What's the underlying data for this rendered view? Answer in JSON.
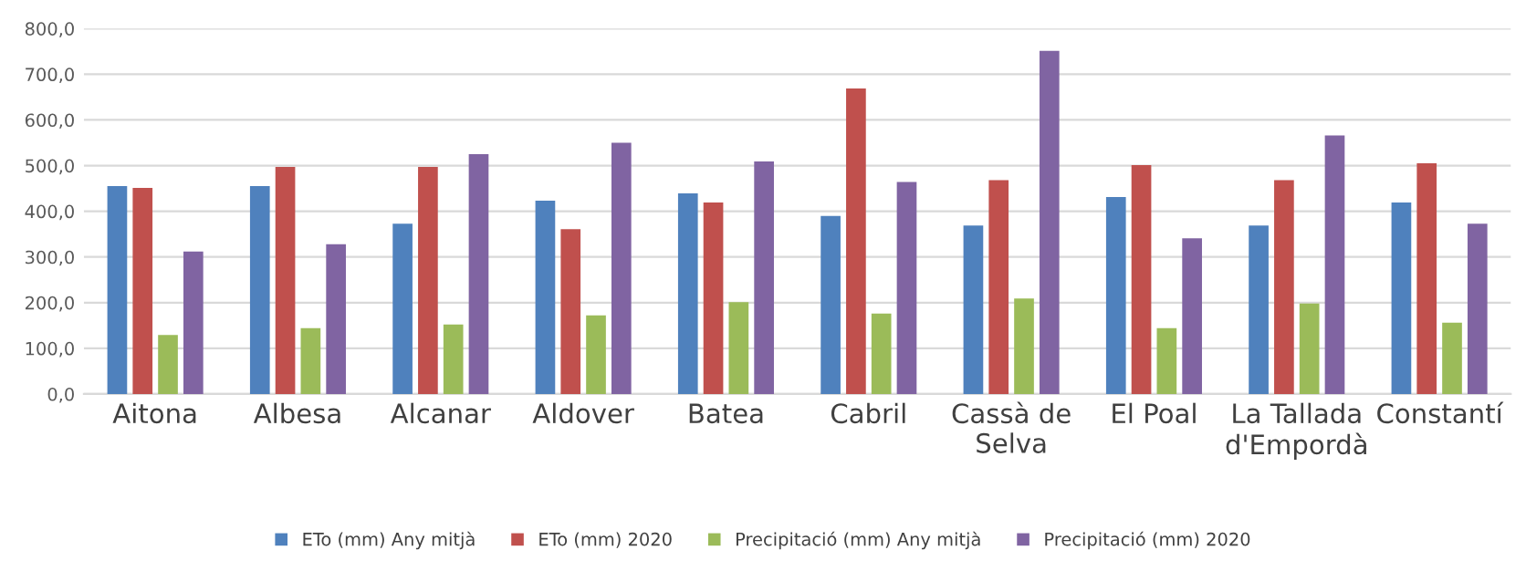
{
  "chart_data": {
    "type": "bar",
    "categories": [
      "Aitona",
      "Albesa",
      "Alcanar",
      "Aldover",
      "Batea",
      "Cabril",
      "Cassà de\nSelva",
      "El Poal",
      "La Tallada\nd'Empordà",
      "Constantí"
    ],
    "series": [
      {
        "name": "ETo (mm) Any mitjà",
        "color": "#4f81bd",
        "values": [
          455,
          455,
          373,
          423,
          439,
          390,
          369,
          431,
          369,
          419
        ]
      },
      {
        "name": "ETo (mm) 2020",
        "color": "#c0504d",
        "values": [
          451,
          497,
          497,
          361,
          419,
          669,
          468,
          501,
          468,
          505
        ]
      },
      {
        "name": "Precipitació (mm) Any mitjà",
        "color": "#9bbb59",
        "values": [
          129,
          144,
          152,
          172,
          201,
          176,
          209,
          144,
          198,
          156
        ]
      },
      {
        "name": "Precipitació (mm) 2020",
        "color": "#8064a2",
        "values": [
          312,
          328,
          525,
          550,
          509,
          464,
          751,
          341,
          566,
          373
        ]
      }
    ],
    "ylim": [
      0,
      800
    ],
    "yticks": [
      {
        "value": 0,
        "label": "0,0"
      },
      {
        "value": 100,
        "label": "100,0"
      },
      {
        "value": 200,
        "label": "200,0"
      },
      {
        "value": 300,
        "label": "300,0"
      },
      {
        "value": 400,
        "label": "400,0"
      },
      {
        "value": 500,
        "label": "500,0"
      },
      {
        "value": 600,
        "label": "600,0"
      },
      {
        "value": 700,
        "label": "700,0"
      },
      {
        "value": 800,
        "label": "800,0"
      }
    ],
    "grid": "y",
    "legend": "bottom"
  }
}
